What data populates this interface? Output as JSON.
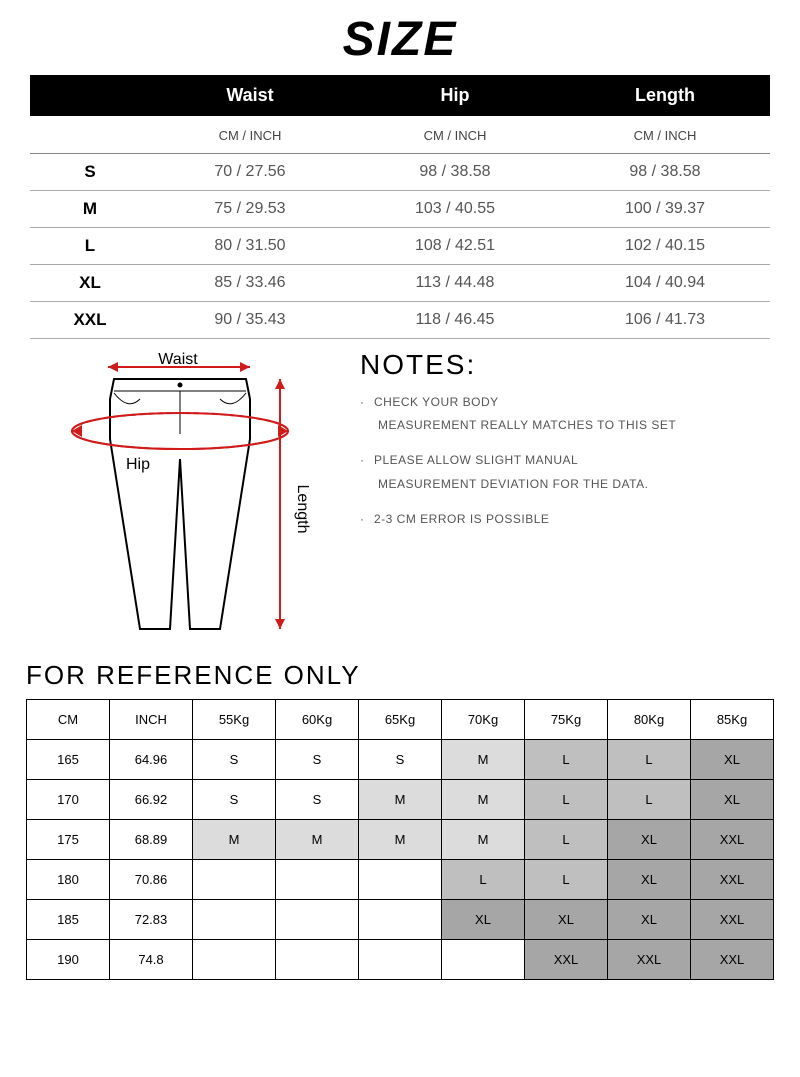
{
  "title": "SIZE",
  "size_table": {
    "headers": [
      "",
      "Waist",
      "Hip",
      "Length"
    ],
    "unit_label": "CM / INCH",
    "rows": [
      {
        "label": "S",
        "waist": "70 / 27.56",
        "hip": "98 / 38.58",
        "length": "98 / 38.58"
      },
      {
        "label": "M",
        "waist": "75 / 29.53",
        "hip": "103 / 40.55",
        "length": "100 / 39.37"
      },
      {
        "label": "L",
        "waist": "80 / 31.50",
        "hip": "108 / 42.51",
        "length": "102 / 40.15"
      },
      {
        "label": "XL",
        "waist": "85 / 33.46",
        "hip": "113 / 44.48",
        "length": "104 / 40.94"
      },
      {
        "label": "XXL",
        "waist": "90 / 35.43",
        "hip": "118 / 46.45",
        "length": "106 / 41.73"
      }
    ]
  },
  "diagram": {
    "waist_label": "Waist",
    "hip_label": "Hip",
    "length_label": "Length",
    "outline_color": "#000000",
    "arrow_color": "#d11a1a"
  },
  "notes": {
    "title": "NOTES:",
    "lines": [
      "CHECK YOUR BODY",
      "MEASUREMENT REALLY MATCHES TO THIS SET",
      "PLEASE ALLOW SLIGHT MANUAL",
      "MEASUREMENT DEVIATION FOR THE DATA.",
      "2-3 CM ERROR IS POSSIBLE"
    ]
  },
  "reference": {
    "title": "FOR REFERENCE ONLY",
    "headers": [
      "CM",
      "INCH",
      "55Kg",
      "60Kg",
      "65Kg",
      "70Kg",
      "75Kg",
      "80Kg",
      "85Kg"
    ],
    "rows": [
      {
        "cm": "165",
        "inch": "64.96",
        "cells": [
          [
            "S",
            0
          ],
          [
            "S",
            0
          ],
          [
            "S",
            0
          ],
          [
            "M",
            1
          ],
          [
            "L",
            2
          ],
          [
            "L",
            2
          ],
          [
            "XL",
            3
          ]
        ]
      },
      {
        "cm": "170",
        "inch": "66.92",
        "cells": [
          [
            "S",
            0
          ],
          [
            "S",
            0
          ],
          [
            "M",
            1
          ],
          [
            "M",
            1
          ],
          [
            "L",
            2
          ],
          [
            "L",
            2
          ],
          [
            "XL",
            3
          ]
        ]
      },
      {
        "cm": "175",
        "inch": "68.89",
        "cells": [
          [
            "M",
            1
          ],
          [
            "M",
            1
          ],
          [
            "M",
            1
          ],
          [
            "M",
            1
          ],
          [
            "L",
            2
          ],
          [
            "XL",
            3
          ],
          [
            "XXL",
            3
          ]
        ]
      },
      {
        "cm": "180",
        "inch": "70.86",
        "cells": [
          [
            "",
            0
          ],
          [
            "",
            0
          ],
          [
            "",
            0
          ],
          [
            "L",
            2
          ],
          [
            "L",
            2
          ],
          [
            "XL",
            3
          ],
          [
            "XXL",
            3
          ]
        ]
      },
      {
        "cm": "185",
        "inch": "72.83",
        "cells": [
          [
            "",
            0
          ],
          [
            "",
            0
          ],
          [
            "",
            0
          ],
          [
            "XL",
            3
          ],
          [
            "XL",
            3
          ],
          [
            "XL",
            3
          ],
          [
            "XXL",
            3
          ]
        ]
      },
      {
        "cm": "190",
        "inch": "74.8",
        "cells": [
          [
            "",
            0
          ],
          [
            "",
            0
          ],
          [
            "",
            0
          ],
          [
            "",
            0
          ],
          [
            "XXL",
            3
          ],
          [
            "XXL",
            3
          ],
          [
            "XXL",
            3
          ]
        ]
      }
    ]
  }
}
